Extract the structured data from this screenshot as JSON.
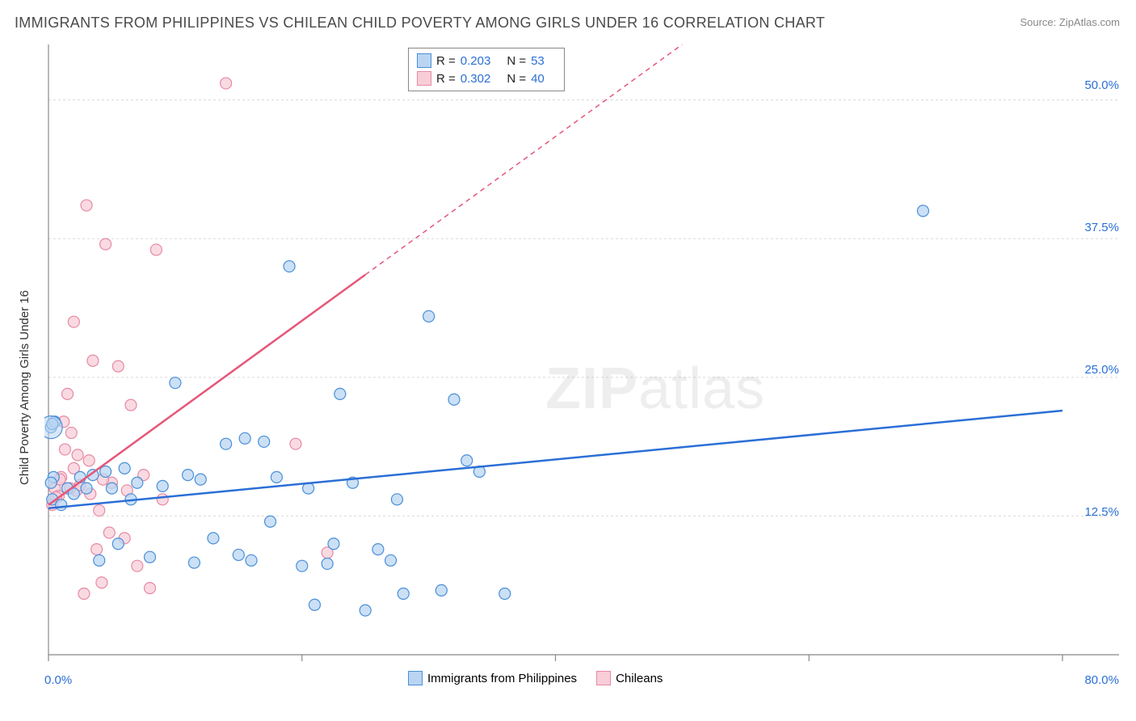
{
  "title": "IMMIGRANTS FROM PHILIPPINES VS CHILEAN CHILD POVERTY AMONG GIRLS UNDER 16 CORRELATION CHART",
  "source": "Source: ZipAtlas.com",
  "watermark": {
    "zip": "ZIP",
    "atlas": "atlas"
  },
  "ylabel": "Child Poverty Among Girls Under 16",
  "chart": {
    "type": "scatter",
    "background_color": "#ffffff",
    "grid_color": "#d9d9d9",
    "axis_color": "#888888",
    "tick_color": "#888888",
    "xlim": [
      0,
      80
    ],
    "ylim": [
      0,
      55
    ],
    "x_ticks": [
      0,
      20,
      40,
      60,
      80
    ],
    "y_gridlines": [
      12.5,
      25.0,
      37.5,
      50.0
    ],
    "x_axis_labels": [
      {
        "value": 0,
        "text": "0.0%"
      },
      {
        "value": 80,
        "text": "80.0%"
      }
    ],
    "y_axis_labels": [
      {
        "value": 12.5,
        "text": "12.5%"
      },
      {
        "value": 25.0,
        "text": "25.0%"
      },
      {
        "value": 37.5,
        "text": "37.5%"
      },
      {
        "value": 50.0,
        "text": "50.0%"
      }
    ],
    "marker_radius": 7,
    "marker_stroke_width": 1.2,
    "trend_line_width": 2.5,
    "trend_dash": "6,5",
    "series": [
      {
        "name": "Immigrants from Philippines",
        "fill": "#b9d5f2",
        "stroke": "#4a8fd8",
        "r_value": "0.203",
        "n_value": "53",
        "trend": {
          "color": "#2b6fd6",
          "x1": 0,
          "y1": 13.2,
          "x2": 80,
          "y2": 22.0,
          "solid_until_x": 80
        },
        "points": [
          [
            0.2,
            20.5
          ],
          [
            0.3,
            14.0
          ],
          [
            0.4,
            16.0
          ],
          [
            0.5,
            21.0
          ],
          [
            1.0,
            13.5
          ],
          [
            1.5,
            15.0
          ],
          [
            2.0,
            14.5
          ],
          [
            2.5,
            16.0
          ],
          [
            3.0,
            15.0
          ],
          [
            3.5,
            16.2
          ],
          [
            4.0,
            8.5
          ],
          [
            4.5,
            16.5
          ],
          [
            5.0,
            15.0
          ],
          [
            5.5,
            10.0
          ],
          [
            6.0,
            16.8
          ],
          [
            6.5,
            14.0
          ],
          [
            7.0,
            15.5
          ],
          [
            8.0,
            8.8
          ],
          [
            9.0,
            15.2
          ],
          [
            10.0,
            24.5
          ],
          [
            11.0,
            16.2
          ],
          [
            11.5,
            8.3
          ],
          [
            12.0,
            15.8
          ],
          [
            13.0,
            10.5
          ],
          [
            14.0,
            19.0
          ],
          [
            15.0,
            9.0
          ],
          [
            15.5,
            19.5
          ],
          [
            16.0,
            8.5
          ],
          [
            17.0,
            19.2
          ],
          [
            17.5,
            12.0
          ],
          [
            18.0,
            16.0
          ],
          [
            19.0,
            35.0
          ],
          [
            20.0,
            8.0
          ],
          [
            20.5,
            15.0
          ],
          [
            21.0,
            4.5
          ],
          [
            22.0,
            8.2
          ],
          [
            22.5,
            10.0
          ],
          [
            23.0,
            23.5
          ],
          [
            24.0,
            15.5
          ],
          [
            25.0,
            4.0
          ],
          [
            26.0,
            9.5
          ],
          [
            27.0,
            8.5
          ],
          [
            27.5,
            14.0
          ],
          [
            28.0,
            5.5
          ],
          [
            30.0,
            30.5
          ],
          [
            31.0,
            5.8
          ],
          [
            32.0,
            23.0
          ],
          [
            33.0,
            17.5
          ],
          [
            34.0,
            16.5
          ],
          [
            36.0,
            5.5
          ],
          [
            0.3,
            20.8
          ],
          [
            69.0,
            40.0
          ],
          [
            0.2,
            15.5
          ]
        ]
      },
      {
        "name": "Chileans",
        "fill": "#f8cdd8",
        "stroke": "#e68aa3",
        "r_value": "0.302",
        "n_value": "40",
        "trend": {
          "color": "#e5577a",
          "x1": 0,
          "y1": 13.5,
          "x2": 50,
          "y2": 55.0,
          "solid_until_x": 25
        },
        "points": [
          [
            0.3,
            13.5
          ],
          [
            0.5,
            15.0
          ],
          [
            0.8,
            14.3
          ],
          [
            1.0,
            16.0
          ],
          [
            1.2,
            21.0
          ],
          [
            1.5,
            23.5
          ],
          [
            1.8,
            20.0
          ],
          [
            2.0,
            30.0
          ],
          [
            2.2,
            14.8
          ],
          [
            2.5,
            15.3
          ],
          [
            2.8,
            5.5
          ],
          [
            3.0,
            40.5
          ],
          [
            3.2,
            17.5
          ],
          [
            3.5,
            26.5
          ],
          [
            3.8,
            9.5
          ],
          [
            4.0,
            13.0
          ],
          [
            4.2,
            6.5
          ],
          [
            4.5,
            37.0
          ],
          [
            4.8,
            11.0
          ],
          [
            5.0,
            15.5
          ],
          [
            5.5,
            26.0
          ],
          [
            6.0,
            10.5
          ],
          [
            6.2,
            14.8
          ],
          [
            6.5,
            22.5
          ],
          [
            7.0,
            8.0
          ],
          [
            7.5,
            16.2
          ],
          [
            8.0,
            6.0
          ],
          [
            8.5,
            36.5
          ],
          [
            9.0,
            14.0
          ],
          [
            1.3,
            18.5
          ],
          [
            2.0,
            16.8
          ],
          [
            0.6,
            14.2
          ],
          [
            1.7,
            15.0
          ],
          [
            3.3,
            14.5
          ],
          [
            4.3,
            15.8
          ],
          [
            14.0,
            51.5
          ],
          [
            19.5,
            19.0
          ],
          [
            22.0,
            9.2
          ],
          [
            0.9,
            15.8
          ],
          [
            2.3,
            18.0
          ]
        ]
      }
    ]
  },
  "legend_top": {
    "r_label": "R =",
    "n_label": "N ="
  },
  "legend_bottom": {
    "items": [
      {
        "label": "Immigrants from Philippines",
        "fill": "#b9d5f2",
        "stroke": "#4a8fd8"
      },
      {
        "label": "Chileans",
        "fill": "#f8cdd8",
        "stroke": "#e68aa3"
      }
    ]
  }
}
